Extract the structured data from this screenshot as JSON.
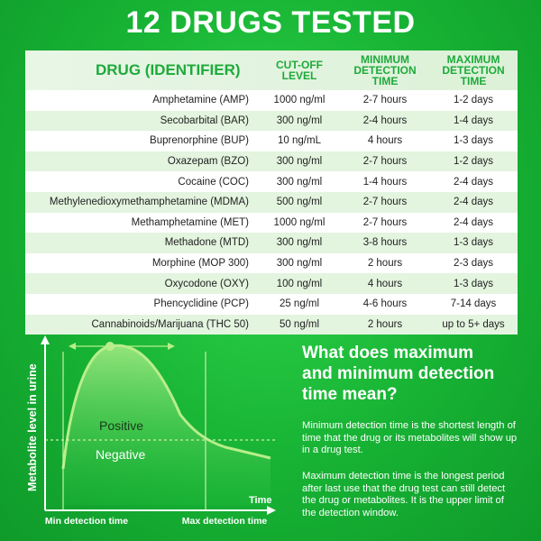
{
  "title": "12 DRUGS TESTED",
  "table": {
    "headers": {
      "drug": "DRUG (IDENTIFIER)",
      "cutoff": [
        "CUT-OFF",
        "LEVEL"
      ],
      "min": [
        "MINIMUM",
        "DETECTION",
        "TIME"
      ],
      "max": [
        "MAXIMUM",
        "DETECTION",
        "TIME"
      ]
    },
    "rows": [
      {
        "drug": "Amphetamine (AMP)",
        "cutoff": "1000 ng/ml",
        "min": "2-7 hours",
        "max": "1-2 days"
      },
      {
        "drug": "Secobarbital (BAR)",
        "cutoff": "300 ng/ml",
        "min": "2-4 hours",
        "max": "1-4 days"
      },
      {
        "drug": "Buprenorphine (BUP)",
        "cutoff": "10 ng/mL",
        "min": "4 hours",
        "max": "1-3 days"
      },
      {
        "drug": "Oxazepam (BZO)",
        "cutoff": "300 ng/ml",
        "min": "2-7 hours",
        "max": "1-2 days"
      },
      {
        "drug": "Cocaine (COC)",
        "cutoff": "300 ng/ml",
        "min": "1-4 hours",
        "max": "2-4 days"
      },
      {
        "drug": "Methylenedioxymethamphetamine (MDMA)",
        "cutoff": "500 ng/ml",
        "min": "2-7 hours",
        "max": "2-4 days"
      },
      {
        "drug": "Methamphetamine (MET)",
        "cutoff": "1000 ng/ml",
        "min": "2-7 hours",
        "max": "2-4 days"
      },
      {
        "drug": "Methadone (MTD)",
        "cutoff": "300 ng/ml",
        "min": "3-8 hours",
        "max": "1-3 days"
      },
      {
        "drug": "Morphine (MOP 300)",
        "cutoff": "300 ng/ml",
        "min": "2 hours",
        "max": "2-3 days"
      },
      {
        "drug": "Oxycodone (OXY)",
        "cutoff": "100 ng/ml",
        "min": "4 hours",
        "max": "1-3 days"
      },
      {
        "drug": "Phencyclidine (PCP)",
        "cutoff": "25 ng/ml",
        "min": "4-6 hours",
        "max": "7-14 days"
      },
      {
        "drug": "Cannabinoids/Marijuana (THC 50)",
        "cutoff": "50 ng/ml",
        "min": "2 hours",
        "max": "up to 5+ days"
      }
    ]
  },
  "diagram": {
    "ylabel": "Metabolite level in urine",
    "xlabel": "Time",
    "positive": "Positive",
    "negative": "Negative",
    "min_label": "Min detection time",
    "max_label": "Max detection time"
  },
  "info": {
    "heading_lines": [
      "What does maximum",
      "and minimum detection",
      "time mean?"
    ],
    "p1": "Minimum detection time is the shortest length of time that the drug or its metabolites will show up in a drug test.",
    "p2": "Maximum detection time is the longest period after last use that the drug test can still detect the drug or metabolites. It is the upper limit of the detection window."
  },
  "colors": {
    "background": "#17b234",
    "header_text": "#1eaa3a",
    "row_alt": "#e3f4df",
    "curve": "#b8ee8a"
  }
}
